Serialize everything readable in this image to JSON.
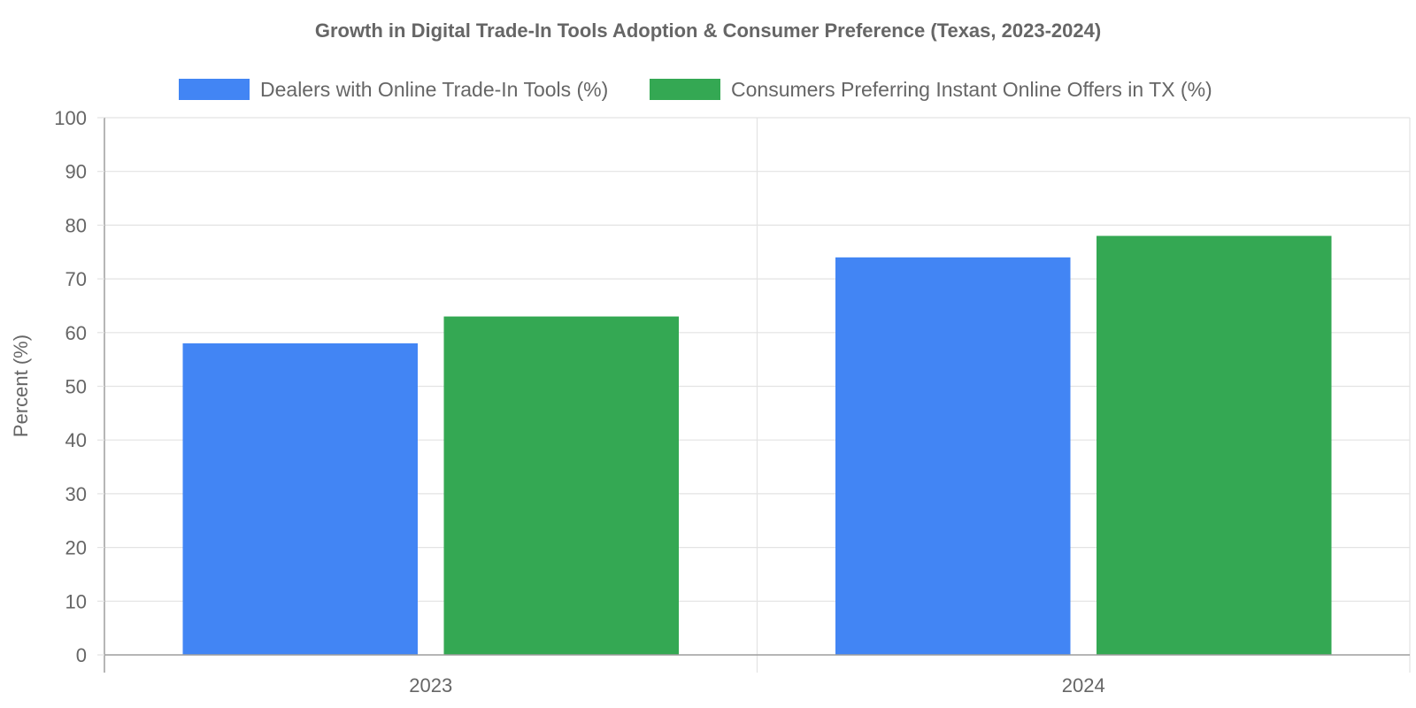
{
  "chart_data": {
    "type": "bar",
    "title": "Growth in Digital Trade-In Tools Adoption & Consumer Preference (Texas, 2023-2024)",
    "xlabel": "",
    "ylabel": "Percent (%)",
    "categories": [
      "2023",
      "2024"
    ],
    "series": [
      {
        "name": "Dealers with Online Trade-In Tools (%)",
        "color": "#4285f4",
        "values": [
          58,
          74
        ]
      },
      {
        "name": "Consumers Preferring Instant Online Offers in TX (%)",
        "color": "#34a853",
        "values": [
          63,
          78
        ]
      }
    ],
    "ylim": [
      0,
      100
    ],
    "yticks": [
      0,
      10,
      20,
      30,
      40,
      50,
      60,
      70,
      80,
      90,
      100
    ],
    "grid": true,
    "legend_position": "top"
  }
}
